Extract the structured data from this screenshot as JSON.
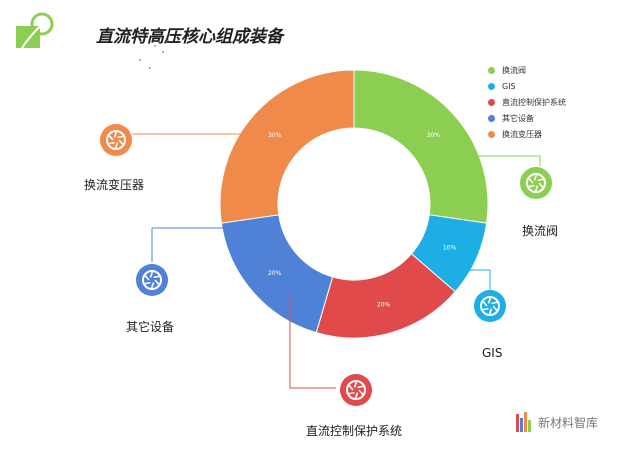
{
  "page": {
    "title": "直流特高压核心组成装备"
  },
  "chart_data": {
    "type": "pie",
    "donut": true,
    "categories": [
      "换流阀",
      "GIS",
      "直流控制保护系统",
      "其它设备",
      "换流变压器"
    ],
    "values": [
      30,
      10,
      20,
      20,
      30
    ],
    "value_labels": [
      "30%",
      "10%",
      "20%",
      "20%",
      "30%"
    ],
    "colors": [
      "#8cce52",
      "#1eaee6",
      "#e04a4a",
      "#4f82d6",
      "#f08a4b"
    ],
    "legend_position": "top-right"
  },
  "legend": {
    "items": [
      {
        "label": "换流阀",
        "color": "#8cce52"
      },
      {
        "label": "GIS",
        "color": "#1eaee6"
      },
      {
        "label": "直流控制保护系统",
        "color": "#e04a4a"
      },
      {
        "label": "其它设备",
        "color": "#4f82d6"
      },
      {
        "label": "换流变压器",
        "color": "#f08a4b"
      }
    ]
  },
  "callouts": [
    {
      "label": "换流阀",
      "color": "#8cce52",
      "icon": "aperture-icon"
    },
    {
      "label": "GIS",
      "color": "#1eaee6",
      "icon": "aperture-icon"
    },
    {
      "label": "直流控制保护系统",
      "color": "#e04a4a",
      "icon": "aperture-icon"
    },
    {
      "label": "其它设备",
      "color": "#4f82d6",
      "icon": "aperture-icon"
    },
    {
      "label": "换流变压器",
      "color": "#f08a4b",
      "icon": "aperture-icon"
    }
  ],
  "watermark": {
    "text": "新材料智库"
  }
}
